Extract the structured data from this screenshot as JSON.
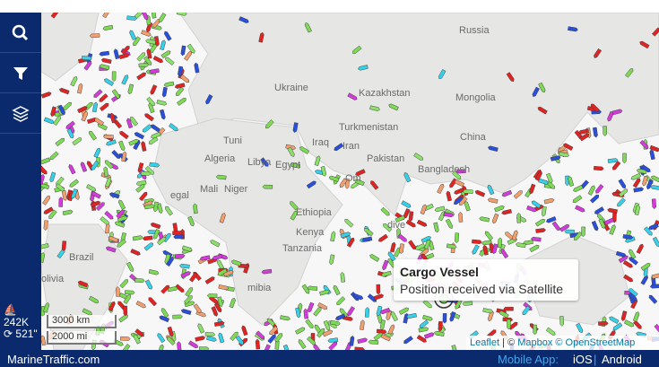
{
  "sidebar": {
    "vessel_count": "242K",
    "refresh": "521\""
  },
  "map": {
    "labels": [
      "Russia",
      "Kazakhstan",
      "Mongolia",
      "China",
      "Ukraine",
      "Turkmenistan",
      "Iran",
      "Iraq",
      "Pakistan",
      "Bangladesh",
      "Algeria",
      "Libya",
      "Egypt",
      "Tuni",
      "Mali",
      "Niger",
      "egal",
      "Ethiopia",
      "Kenya",
      "Tanzania",
      "mibia",
      "Brazil",
      "olivia",
      "Om",
      "dive"
    ],
    "tooltip": {
      "title": "Cargo Vessel",
      "text": "Position received via Satellite"
    },
    "scale": [
      "3000 km",
      "2000 mi"
    ],
    "attribution": {
      "leaflet": "Leaflet",
      "sep": "| ©",
      "mapbox": "Mapbox",
      "osm": "© OpenStreetMap"
    }
  },
  "footer": {
    "site": "MarineTraffic.com",
    "mobile": "Mobile App:",
    "ios": "iOS",
    "divider": "|",
    "android": "Android"
  }
}
